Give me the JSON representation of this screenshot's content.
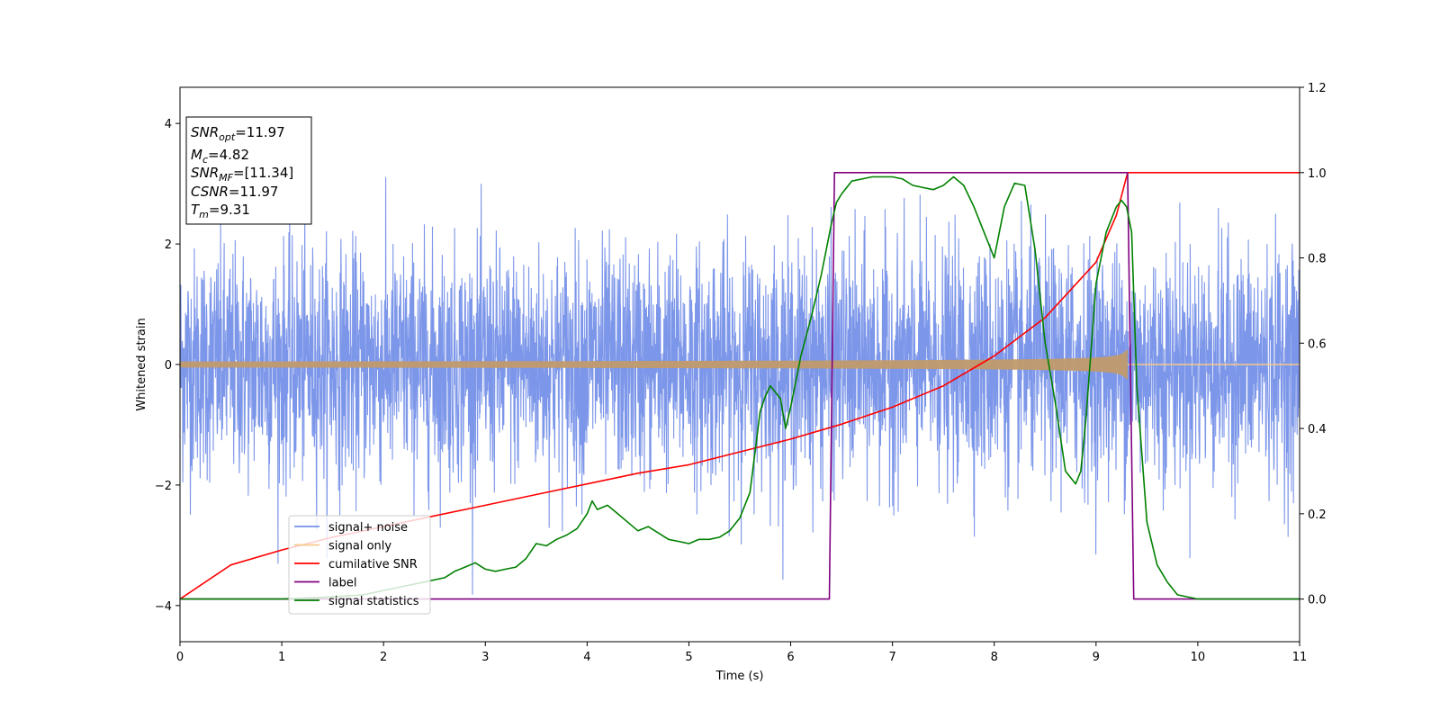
{
  "chart_data": {
    "type": "line",
    "xlabel": "Time (s)",
    "ylabel": "Whitened strain",
    "xlim": [
      0,
      11
    ],
    "ylim_left": [
      -4.6,
      4.6
    ],
    "ylim_right": [
      -0.1,
      1.2
    ],
    "x_ticks": [
      "0",
      "1",
      "2",
      "3",
      "4",
      "5",
      "6",
      "7",
      "8",
      "9",
      "10",
      "11"
    ],
    "y_left_ticks": [
      "-4",
      "-2",
      "0",
      "2",
      "4"
    ],
    "y_right_ticks": [
      "0.0",
      "0.2",
      "0.4",
      "0.6",
      "0.8",
      "1.0",
      "1.2"
    ],
    "legend_position": "lower-left",
    "info_box": {
      "snr_opt": {
        "base": "SNR",
        "sub": "opt",
        "value": "=11.97"
      },
      "mc": {
        "base": "M",
        "sub": "c",
        "value": "=4.82"
      },
      "snr_mf": {
        "base": "SNR",
        "sub": "MF",
        "value": "=[11.34]"
      },
      "csnr": {
        "base": "CSNR",
        "value": "=11.97"
      },
      "tm": {
        "base": "T",
        "sub": "m",
        "value": "=9.31"
      }
    },
    "series": [
      {
        "name": "signal+ noise",
        "axis": "left",
        "color": "#7590e8",
        "noise_scale": 1.0,
        "duration": [
          0,
          11
        ]
      },
      {
        "name": "signal only",
        "axis": "left",
        "color": "#f7c98b",
        "envelope": {
          "t_start": 0,
          "t_merge": 9.31,
          "amp_start": 0.05,
          "amp_peak": 0.75
        }
      },
      {
        "name": "cumilative SNR",
        "axis": "right",
        "color": "#ff0000",
        "x": [
          0,
          0.5,
          1,
          1.5,
          2,
          2.5,
          3,
          3.5,
          4,
          4.5,
          5,
          5.5,
          6,
          6.5,
          7,
          7.5,
          8,
          8.5,
          9,
          9.2,
          9.31,
          11
        ],
        "values": [
          0.0,
          0.08,
          0.115,
          0.145,
          0.17,
          0.195,
          0.22,
          0.245,
          0.27,
          0.295,
          0.315,
          0.345,
          0.375,
          0.41,
          0.45,
          0.5,
          0.57,
          0.66,
          0.79,
          0.9,
          1.0,
          1.0
        ]
      },
      {
        "name": "label",
        "axis": "right",
        "color": "#800080",
        "x": [
          0,
          6.38,
          6.43,
          9.31,
          9.37,
          11
        ],
        "values": [
          0,
          0,
          1,
          1,
          0,
          0
        ]
      },
      {
        "name": "signal statistics",
        "axis": "right",
        "color": "#008000",
        "x": [
          0,
          1.0,
          1.5,
          1.8,
          2.0,
          2.2,
          2.4,
          2.6,
          2.7,
          2.8,
          2.9,
          3.0,
          3.1,
          3.2,
          3.3,
          3.4,
          3.5,
          3.6,
          3.7,
          3.8,
          3.9,
          4.0,
          4.05,
          4.1,
          4.2,
          4.3,
          4.4,
          4.5,
          4.6,
          4.7,
          4.8,
          4.9,
          5.0,
          5.1,
          5.2,
          5.3,
          5.4,
          5.5,
          5.6,
          5.7,
          5.75,
          5.8,
          5.9,
          5.95,
          6.0,
          6.1,
          6.2,
          6.3,
          6.4,
          6.45,
          6.5,
          6.6,
          6.7,
          6.8,
          6.9,
          7.0,
          7.1,
          7.2,
          7.3,
          7.4,
          7.5,
          7.6,
          7.7,
          7.8,
          7.9,
          8.0,
          8.1,
          8.2,
          8.3,
          8.4,
          8.5,
          8.6,
          8.7,
          8.8,
          8.85,
          8.9,
          9.0,
          9.1,
          9.2,
          9.25,
          9.3,
          9.35,
          9.4,
          9.5,
          9.6,
          9.7,
          9.8,
          10.0,
          11
        ],
        "values": [
          0.0,
          0.0,
          0.005,
          0.01,
          0.02,
          0.03,
          0.04,
          0.05,
          0.065,
          0.075,
          0.085,
          0.07,
          0.065,
          0.07,
          0.075,
          0.095,
          0.13,
          0.125,
          0.14,
          0.15,
          0.165,
          0.2,
          0.23,
          0.21,
          0.22,
          0.2,
          0.18,
          0.16,
          0.17,
          0.155,
          0.14,
          0.135,
          0.13,
          0.14,
          0.14,
          0.145,
          0.16,
          0.19,
          0.25,
          0.44,
          0.475,
          0.5,
          0.47,
          0.4,
          0.45,
          0.57,
          0.66,
          0.76,
          0.88,
          0.93,
          0.95,
          0.98,
          0.985,
          0.99,
          0.99,
          0.99,
          0.985,
          0.97,
          0.965,
          0.96,
          0.97,
          0.99,
          0.97,
          0.92,
          0.86,
          0.8,
          0.92,
          0.975,
          0.97,
          0.82,
          0.6,
          0.46,
          0.3,
          0.27,
          0.3,
          0.42,
          0.74,
          0.86,
          0.92,
          0.935,
          0.92,
          0.86,
          0.5,
          0.18,
          0.08,
          0.04,
          0.01,
          0.0,
          0.0
        ]
      }
    ]
  }
}
